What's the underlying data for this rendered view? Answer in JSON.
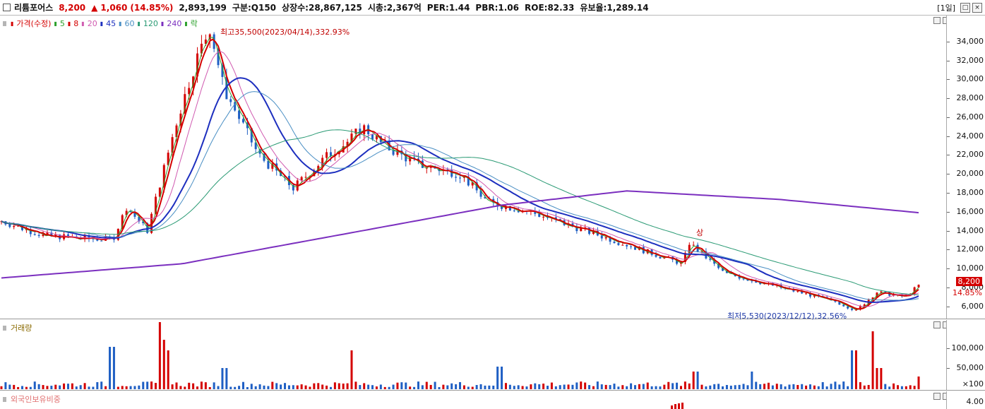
{
  "titlebar": {
    "name": "리튬포어스",
    "price": "8,200",
    "change_arrow": "▲",
    "change": "1,060",
    "change_pct": "(14.85%)",
    "volume": "2,893,199",
    "category": "구분:Q150",
    "listed_shares": "상장수:28,867,125",
    "market_cap": "시총:2,367억",
    "per": "PER:1.44",
    "pbr": "PBR:1.06",
    "roe": "ROE:82.33",
    "retention": "유보율:1,289.14",
    "period": "[1일]"
  },
  "price_panel": {
    "legend": [
      {
        "label": "가격(수정)",
        "color": "#d40000"
      },
      {
        "label": "5",
        "color": "#2ca02c"
      },
      {
        "label": "8",
        "color": "#d40000"
      },
      {
        "label": "20",
        "color": "#d05ab0"
      },
      {
        "label": "45",
        "color": "#1d2fbf"
      },
      {
        "label": "60",
        "color": "#4a8fc4"
      },
      {
        "label": "120",
        "color": "#2a9a74"
      },
      {
        "label": "240",
        "color": "#7b2fbf"
      },
      {
        "label": "락",
        "color": "#2ca02c"
      }
    ],
    "high_annotation": "최고35,500(2023/04/14),332.93%",
    "low_annotation": "최저5,530(2023/12/12),32.56%",
    "upper_limit_mark": "상",
    "current_price_tag": "8,200",
    "current_pct_tag": "14.85%",
    "y_axis_ticks": [
      "34,000",
      "32,000",
      "30,000",
      "28,000",
      "26,000",
      "24,000",
      "22,000",
      "20,000",
      "18,000",
      "16,000",
      "14,000",
      "12,000",
      "10,000",
      "8,000",
      "6,000"
    ]
  },
  "volume_panel": {
    "legend_label": "거래량",
    "y_axis_ticks": [
      "100,000",
      "50,000"
    ],
    "unit": "×100"
  },
  "foreign_panel": {
    "legend_label": "외국인보유비중",
    "y_axis_tick": "4.00"
  },
  "chart_data": {
    "type": "candlestick",
    "y_range": [
      5000,
      36000
    ],
    "series_price_approx": [
      {
        "i": 0,
        "close": 15000
      },
      {
        "i": 30,
        "close": 13500
      },
      {
        "i": 80,
        "close": 13000
      },
      {
        "i": 90,
        "close": 16500
      },
      {
        "i": 105,
        "close": 14000
      },
      {
        "i": 125,
        "close": 25000
      },
      {
        "i": 140,
        "close": 32000
      },
      {
        "i": 150,
        "close": 35500
      },
      {
        "i": 160,
        "close": 29000
      },
      {
        "i": 185,
        "close": 22000
      },
      {
        "i": 210,
        "close": 18500
      },
      {
        "i": 235,
        "close": 22000
      },
      {
        "i": 250,
        "close": 23500
      },
      {
        "i": 260,
        "close": 25000
      },
      {
        "i": 275,
        "close": 23000
      },
      {
        "i": 300,
        "close": 21000
      },
      {
        "i": 330,
        "close": 20000
      },
      {
        "i": 350,
        "close": 17000
      },
      {
        "i": 380,
        "close": 16000
      },
      {
        "i": 420,
        "close": 14000
      },
      {
        "i": 460,
        "close": 12000
      },
      {
        "i": 490,
        "close": 10500
      },
      {
        "i": 495,
        "close": 12700
      },
      {
        "i": 520,
        "close": 9500
      },
      {
        "i": 560,
        "close": 8000
      },
      {
        "i": 600,
        "close": 6500
      },
      {
        "i": 615,
        "close": 5530
      },
      {
        "i": 630,
        "close": 7500
      },
      {
        "i": 650,
        "close": 7000
      },
      {
        "i": 660,
        "close": 8200
      }
    ],
    "ma240_approx": [
      {
        "i": 0,
        "v": 9000
      },
      {
        "i": 130,
        "v": 10500
      },
      {
        "i": 260,
        "v": 14000
      },
      {
        "i": 360,
        "v": 16700
      },
      {
        "i": 450,
        "v": 18200
      },
      {
        "i": 560,
        "v": 17300
      },
      {
        "i": 660,
        "v": 15900
      }
    ]
  }
}
